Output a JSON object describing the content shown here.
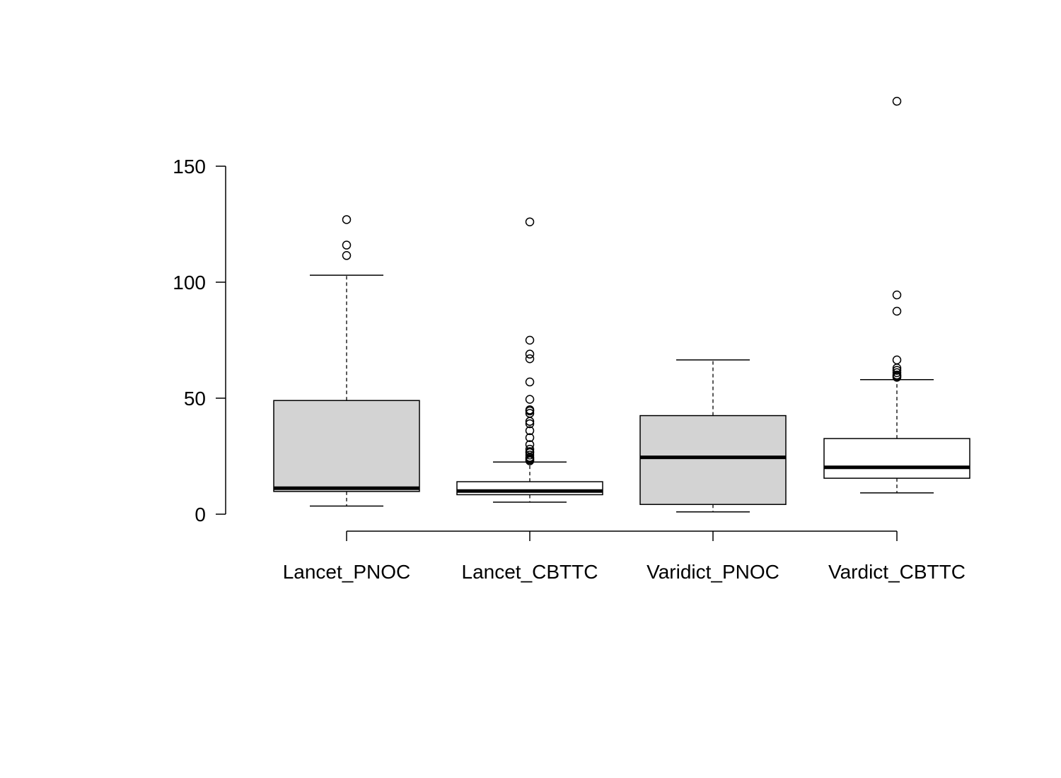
{
  "chart_data": {
    "type": "boxplot",
    "categories": [
      "Lancet_PNOC",
      "Lancet_CBTTC",
      "Varidict_PNOC",
      "Vardict_CBTTC"
    ],
    "y_ticks": [
      0,
      50,
      100,
      150
    ],
    "ylim": [
      0,
      180
    ],
    "boxes": [
      {
        "category": "Lancet_PNOC",
        "fill": "#d3d3d3",
        "whisker_low": 3.5,
        "q1": 9.8,
        "median": 11.2,
        "q3": 49,
        "whisker_high": 103,
        "outliers": [
          127,
          116,
          111.5
        ]
      },
      {
        "category": "Lancet_CBTTC",
        "fill": "#ffffff",
        "whisker_low": 5.2,
        "q1": 8.4,
        "median": 10,
        "q3": 14,
        "whisker_high": 22.5,
        "outliers": [
          126,
          75,
          69,
          67,
          57,
          49.5,
          45,
          44.5,
          43.5,
          40,
          39,
          36,
          33,
          30,
          28,
          27,
          26.5,
          25.5,
          24.5,
          24,
          23.5,
          23
        ]
      },
      {
        "category": "Varidict_PNOC",
        "fill": "#d3d3d3",
        "whisker_low": 1,
        "q1": 4.2,
        "median": 24.5,
        "q3": 42.5,
        "whisker_high": 66.5,
        "outliers": []
      },
      {
        "category": "Vardict_CBTTC",
        "fill": "#ffffff",
        "whisker_low": 9.2,
        "q1": 15.5,
        "median": 20.2,
        "q3": 32.6,
        "whisker_high": 58,
        "outliers": [
          178,
          94.5,
          87.5,
          66.5,
          63,
          62,
          61,
          60,
          59.5,
          59
        ]
      }
    ]
  }
}
